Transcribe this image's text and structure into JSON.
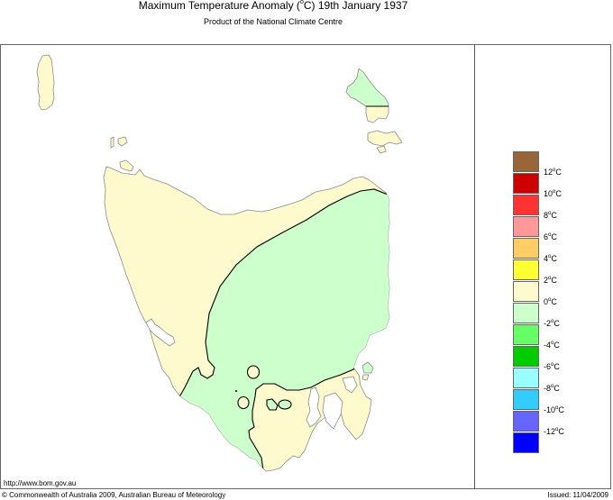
{
  "header": {
    "title_prefix": "Maximum Temperature Anomaly (",
    "title_degree": "o",
    "title_suffix": "C)  19th January 1937",
    "subtitle": "Product of the National Climate Centre"
  },
  "map": {
    "region": "Tasmania",
    "land_outline_color": "#808080",
    "contour_color": "#000000",
    "regions_shown": [
      {
        "name": "0 to 2 anomaly (west, north coast, south-east, King Island, southern Flinders Island)",
        "color": "#fffacd"
      },
      {
        "name": "-2 to 0 anomaly (central, east, south-west, northern Flinders Island)",
        "color": "#ccffcc"
      }
    ]
  },
  "legend": {
    "degree": "o",
    "unit": "C",
    "items": [
      {
        "color": "#99663a",
        "label": "12"
      },
      {
        "color": "#cc0000",
        "label": "10"
      },
      {
        "color": "#ff3333",
        "label": "8"
      },
      {
        "color": "#ff9999",
        "label": "6"
      },
      {
        "color": "#ffcc66",
        "label": "4"
      },
      {
        "color": "#ffff33",
        "label": "2"
      },
      {
        "color": "#fffacd",
        "label": "0"
      },
      {
        "color": "#ccffcc",
        "label": "-2"
      },
      {
        "color": "#66ff66",
        "label": "-4"
      },
      {
        "color": "#00cc00",
        "label": "-6"
      },
      {
        "color": "#99ffff",
        "label": "-8"
      },
      {
        "color": "#33ccff",
        "label": "-10"
      },
      {
        "color": "#6666ff",
        "label": "-12"
      },
      {
        "color": "#0000ff",
        "label": ""
      }
    ]
  },
  "footer": {
    "url": "http://www.bom.gov.au",
    "copyright": "© Commonwealth of Australia 2009, Australian Bureau of Meteorology",
    "issued": "Issued: 11/04/2009"
  }
}
